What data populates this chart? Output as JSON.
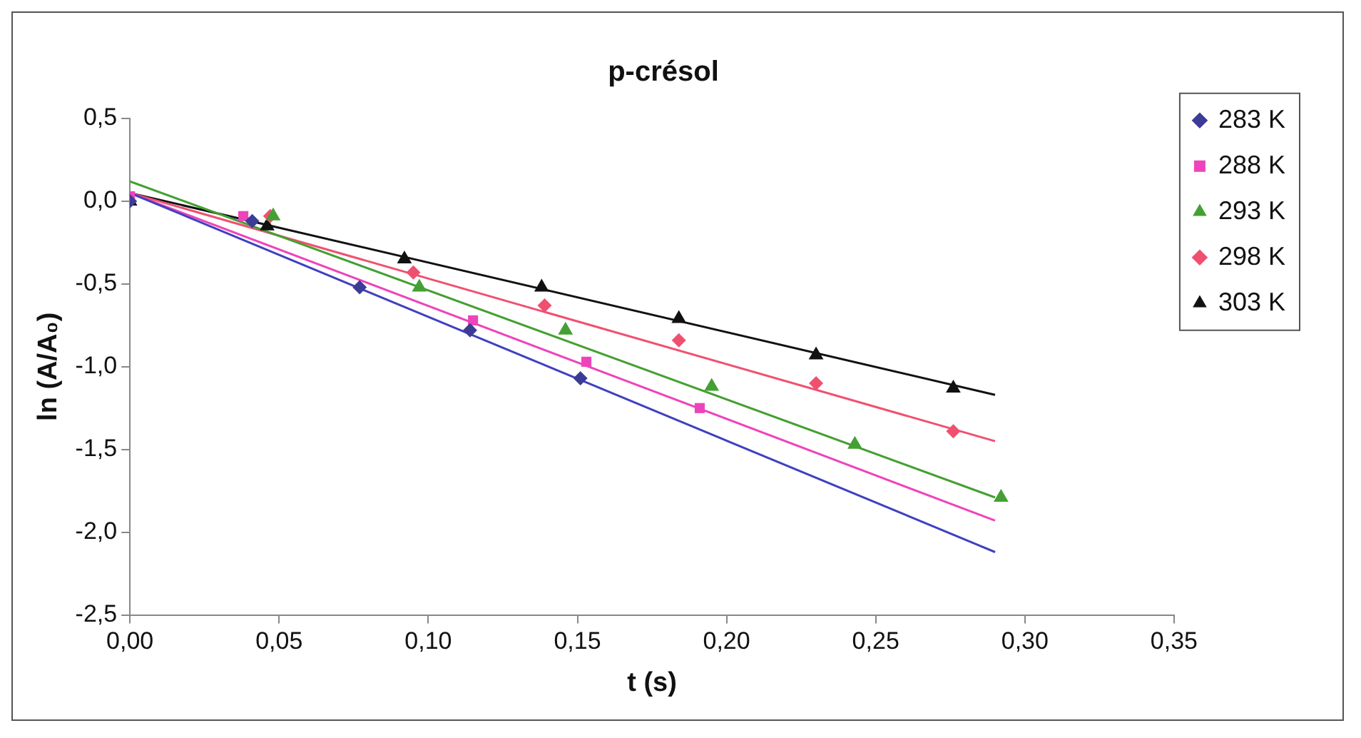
{
  "chart_data": {
    "type": "scatter",
    "title": "p-crésol",
    "xlabel": "t (s)",
    "ylabel": "ln (A/A₀)",
    "grid": false,
    "legend": "right",
    "xlim": [
      0,
      0.35
    ],
    "xticks": [
      {
        "value": 0,
        "label": "0,00"
      },
      {
        "value": 0.05,
        "label": "0,05"
      },
      {
        "value": 0.1,
        "label": "0,10"
      },
      {
        "value": 0.15,
        "label": "0,15"
      },
      {
        "value": 0.2,
        "label": "0,20"
      },
      {
        "value": 0.25,
        "label": "0,25"
      },
      {
        "value": 0.3,
        "label": "0,30"
      },
      {
        "value": 0.35,
        "label": "0,35"
      }
    ],
    "ylim": [
      -2.5,
      0.5
    ],
    "yticks": [
      {
        "value": -2.5,
        "label": "-2,5"
      },
      {
        "value": -2,
        "label": "-2,0"
      },
      {
        "value": -1.5,
        "label": "-1,5"
      },
      {
        "value": -1,
        "label": "-1,0"
      },
      {
        "value": -0.5,
        "label": "-0,5"
      },
      {
        "value": 0,
        "label": "0,0"
      },
      {
        "value": 0.5,
        "label": "0,5"
      }
    ],
    "series": [
      {
        "name": "283 K",
        "marker": "diamond",
        "color": "#3c3c96",
        "x": [
          0,
          0.041,
          0.077,
          0.114,
          0.151
        ],
        "values": [
          0,
          -0.12,
          -0.52,
          -0.78,
          -1.07
        ]
      },
      {
        "name": "288 K",
        "marker": "square",
        "color": "#ee44bb",
        "x": [
          0,
          0.038,
          0.115,
          0.153,
          0.191
        ],
        "values": [
          0.03,
          -0.09,
          -0.72,
          -0.97,
          -1.25
        ]
      },
      {
        "name": "293 K",
        "marker": "triangle",
        "color": "#44a033",
        "x": [
          0.048,
          0.097,
          0.146,
          0.195,
          0.243,
          0.292
        ],
        "values": [
          -0.09,
          -0.52,
          -0.78,
          -1.12,
          -1.47,
          -1.79
        ]
      },
      {
        "name": "298 K",
        "marker": "diamond",
        "color": "#f05070",
        "x": [
          0.047,
          0.095,
          0.139,
          0.184,
          0.23,
          0.276
        ],
        "values": [
          -0.09,
          -0.43,
          -0.63,
          -0.84,
          -1.1,
          -1.39
        ]
      },
      {
        "name": "303 K",
        "marker": "triangle",
        "color": "#111111",
        "x": [
          0,
          0.046,
          0.092,
          0.138,
          0.184,
          0.23,
          0.276
        ],
        "values": [
          0,
          -0.15,
          -0.35,
          -0.52,
          -0.71,
          -0.93,
          -1.13
        ]
      },
      {
        "type": "line",
        "marker": "none",
        "color": "#4040c0",
        "x": [
          0,
          0.29
        ],
        "values": [
          0.05,
          -2.12
        ]
      },
      {
        "type": "line",
        "marker": "none",
        "color": "#ee44bb",
        "x": [
          0,
          0.29
        ],
        "values": [
          0.05,
          -1.93
        ]
      },
      {
        "type": "line",
        "marker": "none",
        "color": "#44a033",
        "x": [
          0,
          0.29
        ],
        "values": [
          0.12,
          -1.79
        ]
      },
      {
        "type": "line",
        "marker": "none",
        "color": "#f05070",
        "x": [
          0,
          0.29
        ],
        "values": [
          0.05,
          -1.45
        ]
      },
      {
        "type": "line",
        "marker": "none",
        "color": "#111111",
        "x": [
          0,
          0.29
        ],
        "values": [
          0.05,
          -1.17
        ]
      }
    ]
  }
}
